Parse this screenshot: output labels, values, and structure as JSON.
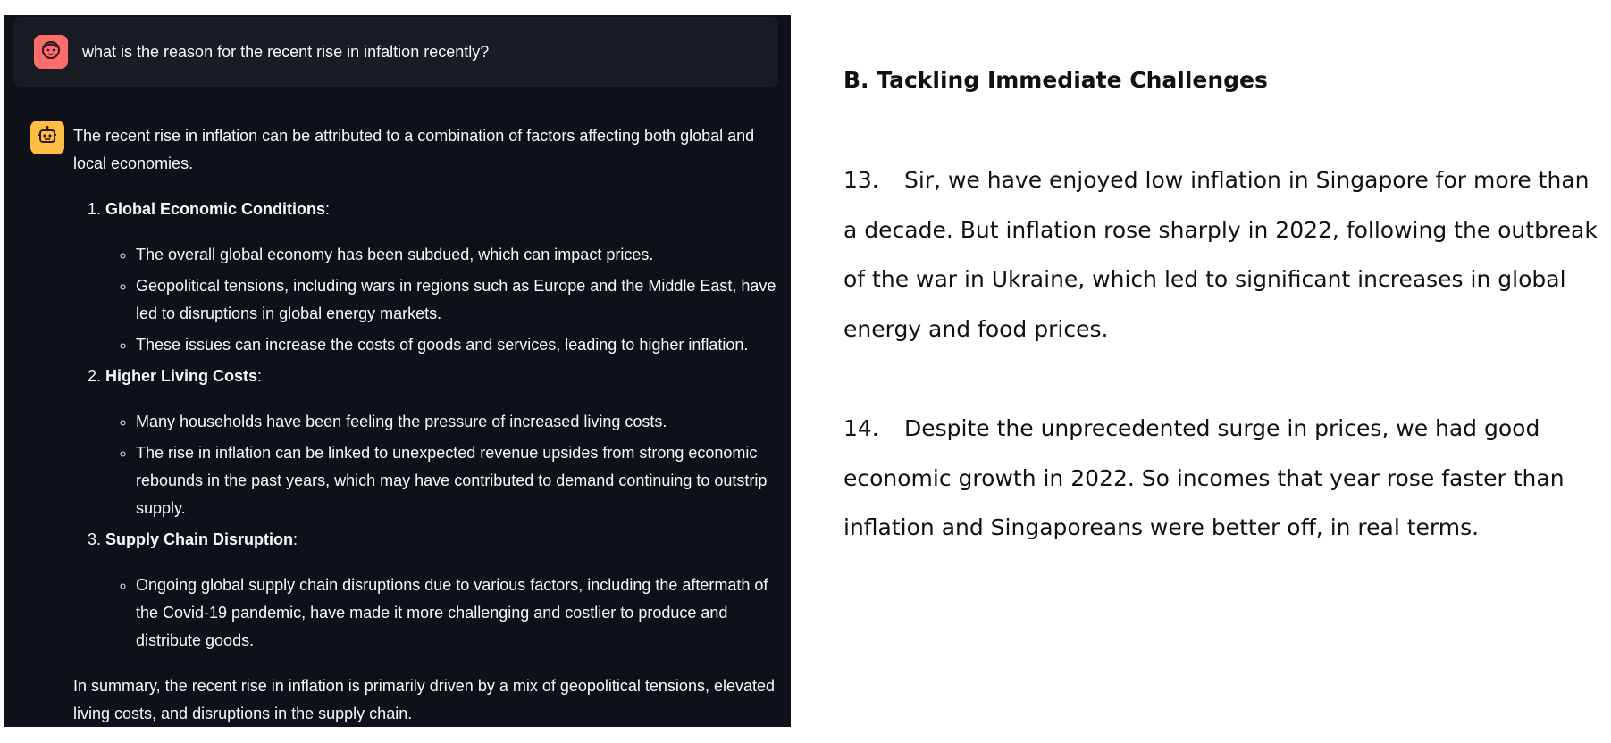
{
  "chat": {
    "user_message": "what is the reason for the recent rise in infaltion recently?",
    "assistant": {
      "intro": "The recent rise in inflation can be attributed to a combination of factors affecting both global and local economies.",
      "items": [
        {
          "title": "Global Economic Conditions",
          "points": [
            "The overall global economy has been subdued, which can impact prices.",
            "Geopolitical tensions, including wars in regions such as Europe and the Middle East, have led to disruptions in global energy markets.",
            "These issues can increase the costs of goods and services, leading to higher inflation."
          ]
        },
        {
          "title": "Higher Living Costs",
          "points": [
            "Many households have been feeling the pressure of increased living costs.",
            "The rise in inflation can be linked to unexpected revenue upsides from strong economic rebounds in the past years, which may have contributed to demand continuing to outstrip supply."
          ]
        },
        {
          "title": "Supply Chain Disruption",
          "points": [
            "Ongoing global supply chain disruptions due to various factors, including the aftermath of the Covid-19 pandemic, have made it more challenging and costlier to produce and distribute goods."
          ]
        }
      ],
      "summary": "In summary, the recent rise in inflation is primarily driven by a mix of geopolitical tensions, elevated living costs, and disruptions in the supply chain."
    },
    "icons": {
      "user": "face-icon",
      "assistant": "robot-icon"
    },
    "colors": {
      "panel_bg": "#0e1117",
      "user_bubble_bg": "#1a1c24",
      "user_avatar": "#ff6c6c",
      "assistant_avatar": "#ffbd45"
    }
  },
  "document": {
    "heading": "B. Tackling Immediate Challenges",
    "paragraphs": [
      {
        "num": "13.",
        "text": "Sir, we have enjoyed low inflation in Singapore for more than a decade. But inflation rose sharply in 2022, following the outbreak of the war in Ukraine, which led to significant increases in global energy and food prices."
      },
      {
        "num": "14.",
        "text": "Despite the unprecedented surge in prices, we had good economic growth in 2022. So incomes that year rose faster than inflation and Singaporeans were better off, in real terms."
      }
    ]
  }
}
